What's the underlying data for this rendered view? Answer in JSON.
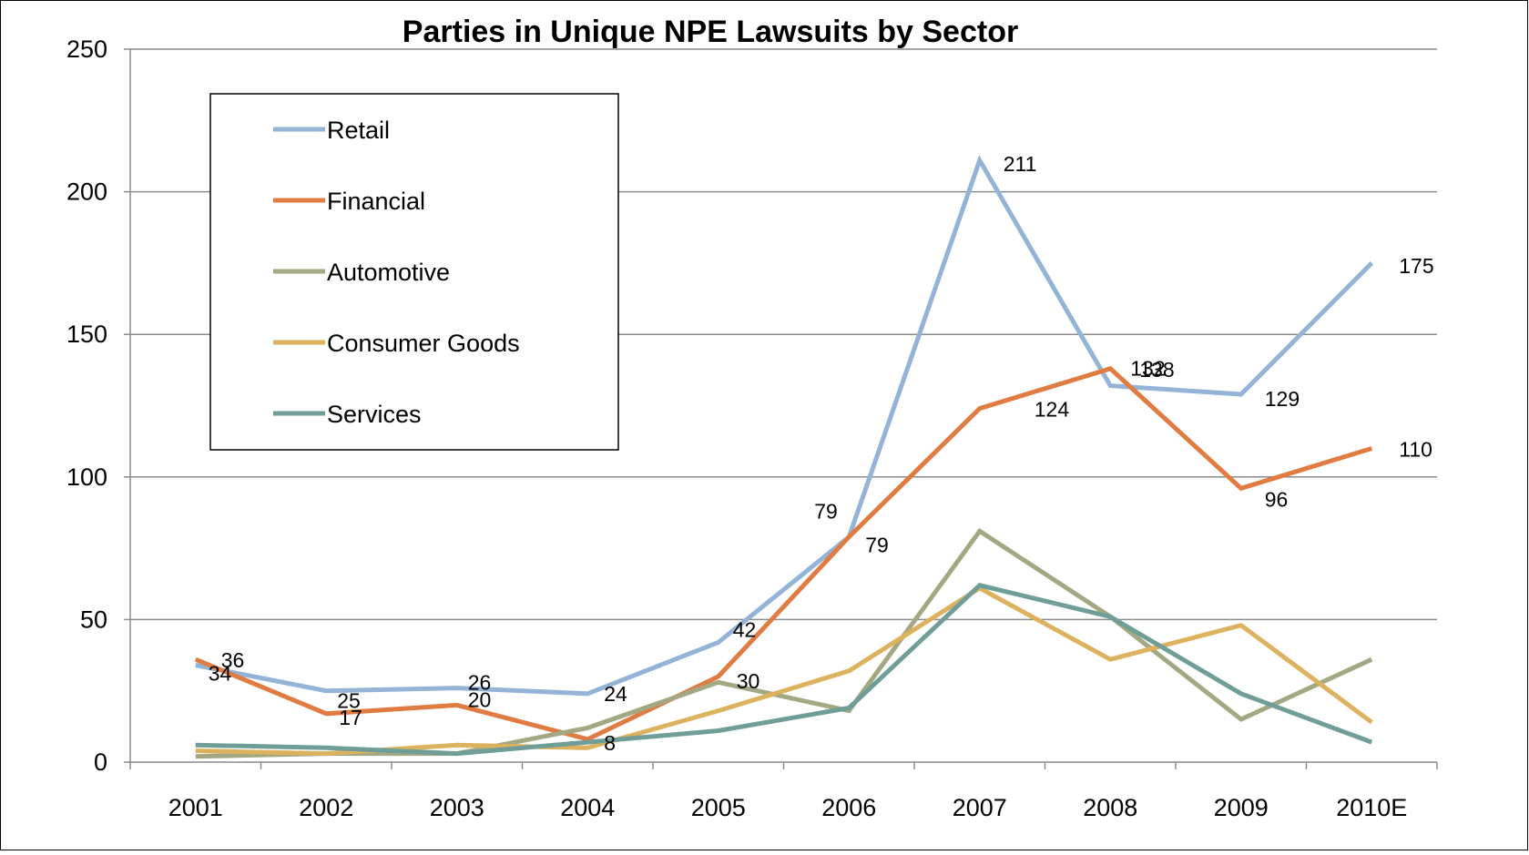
{
  "chart_data": {
    "type": "line",
    "title": "Parties in Unique NPE Lawsuits by Sector",
    "xlabel": "",
    "ylabel": "",
    "ylim": [
      0,
      250
    ],
    "yticks": [
      "0",
      "50",
      "100",
      "150",
      "200",
      "250"
    ],
    "categories": [
      "2001",
      "2002",
      "2003",
      "2004",
      "2005",
      "2006",
      "2007",
      "2008",
      "2009",
      "2010E"
    ],
    "grid": "horizontal",
    "legend_position": "top-left",
    "series": [
      {
        "name": "Retail",
        "color": "#93B3D7",
        "values": [
          34,
          25,
          26,
          24,
          42,
          79,
          211,
          132,
          129,
          175
        ],
        "labels": [
          "34",
          "25",
          "26",
          "24",
          "42",
          "79",
          "211",
          "132",
          "129",
          "175"
        ]
      },
      {
        "name": "Financial",
        "color": "#E07B42",
        "values": [
          36,
          17,
          20,
          8,
          30,
          79,
          124,
          138,
          96,
          110
        ],
        "labels": [
          "36",
          "17",
          "20",
          "8",
          "30",
          "79",
          "124",
          "138",
          "96",
          "110"
        ]
      },
      {
        "name": "Automotive",
        "color": "#A3A883",
        "values": [
          2,
          3,
          3,
          12,
          28,
          18,
          81,
          51,
          15,
          36
        ],
        "labels": []
      },
      {
        "name": "Consumer Goods",
        "color": "#DDB25E",
        "values": [
          4,
          3,
          6,
          5,
          18,
          32,
          61,
          36,
          48,
          14
        ],
        "labels": []
      },
      {
        "name": "Services",
        "color": "#6F9E98",
        "values": [
          6,
          5,
          3,
          7,
          11,
          19,
          62,
          51,
          24,
          7
        ],
        "labels": []
      }
    ]
  }
}
